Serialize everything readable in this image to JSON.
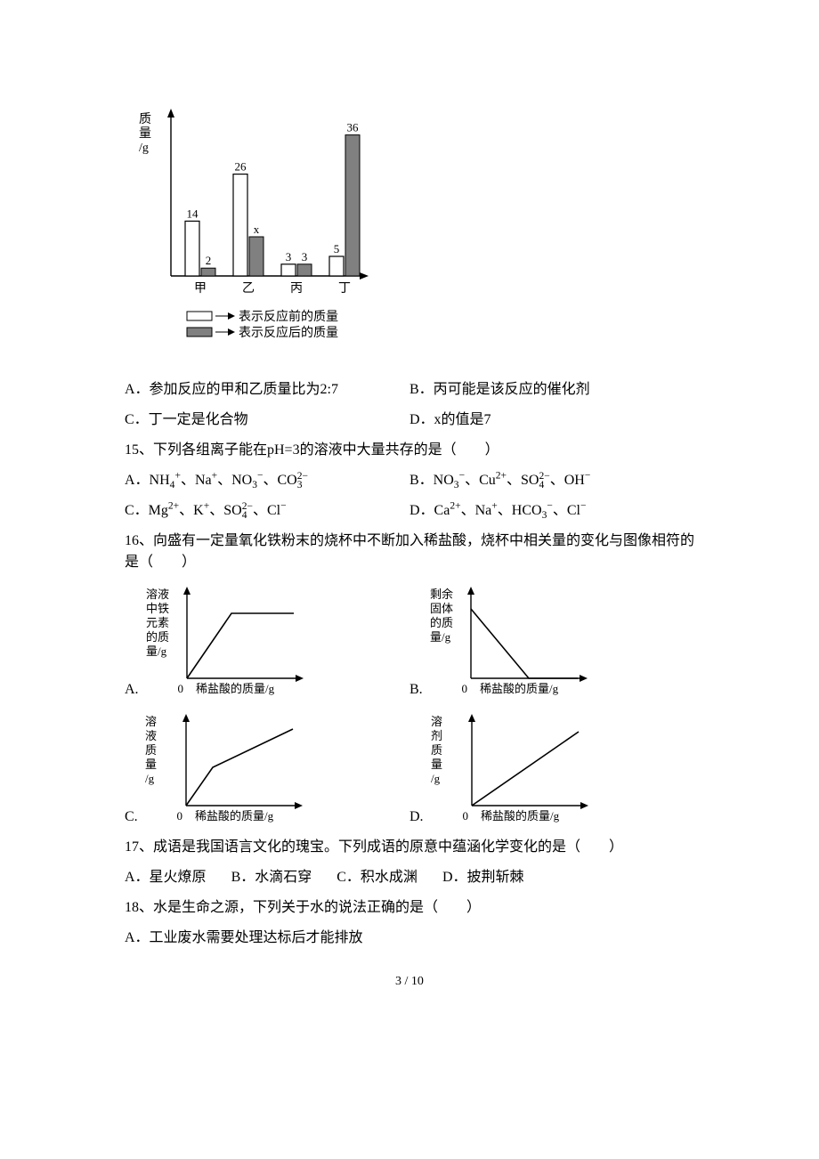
{
  "bar_chart": {
    "type": "bar",
    "y_axis_label_lines": [
      "质",
      "量",
      "/g"
    ],
    "legend": {
      "before": "表示反应前的质量",
      "after": "表示反应后的质量"
    },
    "categories": [
      "甲",
      "乙",
      "丙",
      "丁"
    ],
    "before_values": [
      14,
      26,
      3,
      5
    ],
    "after_values": [
      2,
      "x",
      3,
      36
    ],
    "before_fill": "#ffffff",
    "after_fill": "#808080",
    "stroke": "#000000",
    "ymax": 40
  },
  "q14_opts": {
    "A": "A．参加反应的甲和乙质量比为2:7",
    "B": "B．丙可能是该反应的催化剂",
    "C": "C．丁一定是化合物",
    "D": "D．x的值是7"
  },
  "q15": {
    "text": "15、下列各组离子能在pH=3的溶液中大量共存的是（　　）"
  },
  "q16": {
    "text": "16、向盛有一定量氧化铁粉末的烧杯中不断加入稀盐酸，烧杯中相关量的变化与图像相符的是（　　）"
  },
  "graphs": {
    "type": "line",
    "axis_color": "#000000",
    "x_label": "稀盐酸的质量/g",
    "origin_label": "0",
    "A": {
      "y_lines": [
        "溶液",
        "中铁",
        "元素",
        "的质",
        "量/g"
      ]
    },
    "B": {
      "y_lines": [
        "剩余",
        "固体",
        "的质",
        "量/g"
      ]
    },
    "C": {
      "y_lines": [
        "溶",
        "液",
        "质",
        "量",
        "/g"
      ]
    },
    "D": {
      "y_lines": [
        "溶",
        "剂",
        "质",
        "量",
        "/g"
      ]
    }
  },
  "q17": {
    "text": "17、成语是我国语言文化的瑰宝。下列成语的原意中蕴涵化学变化的是（　　）",
    "opts": {
      "A": "A．星火燎原",
      "B": "B．水滴石穿",
      "C": "C．积水成渊",
      "D": "D．披荆斩棘"
    }
  },
  "q18": {
    "text": "18、水是生命之源，下列关于水的说法正确的是（　　）",
    "A": "A．工业废水需要处理达标后才能排放"
  },
  "page": "3 / 10"
}
